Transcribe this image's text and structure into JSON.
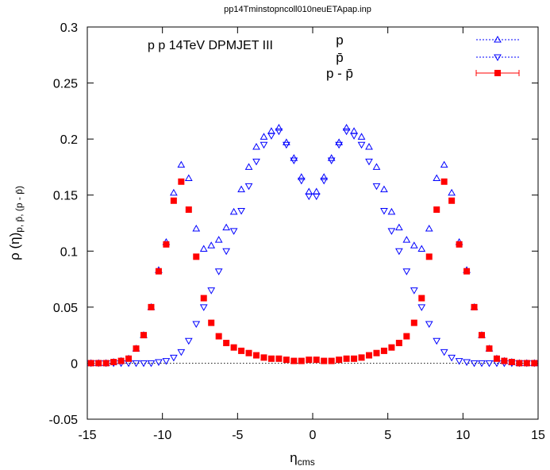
{
  "chart_data": {
    "type": "scatter",
    "file_title": "pp14Tminstopncoll010neuETApap.inp",
    "annotation": "p p  14TeV DPMJET III",
    "xlabel": "η",
    "xlabel_sub": "cms",
    "ylabel": "ρ (η)",
    "ylabel_sub": "p, p̄, (p - p̄)",
    "xlim": [
      -15,
      15
    ],
    "ylim": [
      -0.05,
      0.3
    ],
    "xticks": [
      "-15",
      "-10",
      "-5",
      "0",
      "5",
      "10",
      "15"
    ],
    "yticks": [
      "-0.05",
      "0",
      "0.05",
      "0.1",
      "0.15",
      "0.2",
      "0.25",
      "0.3"
    ],
    "grid": false,
    "legend_position": "top-right",
    "series": [
      {
        "name": "p",
        "marker": "triangle-up",
        "color": "#0000ff",
        "x": [
          -14.75,
          -14.25,
          -13.75,
          -13.25,
          -12.75,
          -12.25,
          -11.75,
          -11.25,
          -10.75,
          -10.25,
          -9.75,
          -9.25,
          -8.75,
          -8.25,
          -7.75,
          -7.25,
          -6.75,
          -6.25,
          -5.75,
          -5.25,
          -4.75,
          -4.25,
          -3.75,
          -3.25,
          -2.75,
          -2.25,
          -1.75,
          -1.25,
          -0.75,
          -0.25,
          0.25,
          0.75,
          1.25,
          1.75,
          2.25,
          2.75,
          3.25,
          3.75,
          4.25,
          4.75,
          5.25,
          5.75,
          6.25,
          6.75,
          7.25,
          7.75,
          8.25,
          8.75,
          9.25,
          9.75,
          10.25,
          10.75,
          11.25,
          11.75,
          12.25,
          12.75,
          13.25,
          13.75,
          14.25,
          14.75
        ],
        "y": [
          0,
          0,
          0,
          0.001,
          0.002,
          0.004,
          0.013,
          0.025,
          0.05,
          0.083,
          0.108,
          0.152,
          0.177,
          0.165,
          0.12,
          0.102,
          0.105,
          0.11,
          0.121,
          0.135,
          0.155,
          0.175,
          0.193,
          0.202,
          0.207,
          0.21,
          0.197,
          0.183,
          0.166,
          0.153,
          0.153,
          0.166,
          0.183,
          0.197,
          0.21,
          0.207,
          0.202,
          0.193,
          0.175,
          0.155,
          0.135,
          0.121,
          0.11,
          0.105,
          0.102,
          0.12,
          0.165,
          0.177,
          0.152,
          0.108,
          0.083,
          0.05,
          0.025,
          0.013,
          0.004,
          0.002,
          0.001,
          0,
          0,
          0
        ]
      },
      {
        "name": "p̄",
        "marker": "triangle-down",
        "color": "#0000ff",
        "x": [
          -14.75,
          -14.25,
          -13.75,
          -13.25,
          -12.75,
          -12.25,
          -11.75,
          -11.25,
          -10.75,
          -10.25,
          -9.75,
          -9.25,
          -8.75,
          -8.25,
          -7.75,
          -7.25,
          -6.75,
          -6.25,
          -5.75,
          -5.25,
          -4.75,
          -4.25,
          -3.75,
          -3.25,
          -2.75,
          -2.25,
          -1.75,
          -1.25,
          -0.75,
          -0.25,
          0.25,
          0.75,
          1.25,
          1.75,
          2.25,
          2.75,
          3.25,
          3.75,
          4.25,
          4.75,
          5.25,
          5.75,
          6.25,
          6.75,
          7.25,
          7.75,
          8.25,
          8.75,
          9.25,
          9.75,
          10.25,
          10.75,
          11.25,
          11.75,
          12.25,
          12.75,
          13.25,
          13.75,
          14.25,
          14.75
        ],
        "y": [
          0,
          0,
          0,
          0,
          0,
          0,
          0,
          0,
          0,
          0.001,
          0.002,
          0.005,
          0.01,
          0.02,
          0.035,
          0.05,
          0.065,
          0.082,
          0.1,
          0.118,
          0.136,
          0.158,
          0.18,
          0.195,
          0.203,
          0.207,
          0.195,
          0.181,
          0.163,
          0.149,
          0.149,
          0.163,
          0.181,
          0.195,
          0.207,
          0.203,
          0.195,
          0.18,
          0.158,
          0.136,
          0.118,
          0.1,
          0.082,
          0.065,
          0.05,
          0.035,
          0.02,
          0.01,
          0.005,
          0.002,
          0.001,
          0,
          0,
          0,
          0,
          0,
          0,
          0,
          0,
          0
        ]
      },
      {
        "name": "p - p̄",
        "marker": "square-filled",
        "color": "#ff0000",
        "x": [
          -14.75,
          -14.25,
          -13.75,
          -13.25,
          -12.75,
          -12.25,
          -11.75,
          -11.25,
          -10.75,
          -10.25,
          -9.75,
          -9.25,
          -8.75,
          -8.25,
          -7.75,
          -7.25,
          -6.75,
          -6.25,
          -5.75,
          -5.25,
          -4.75,
          -4.25,
          -3.75,
          -3.25,
          -2.75,
          -2.25,
          -1.75,
          -1.25,
          -0.75,
          -0.25,
          0.25,
          0.75,
          1.25,
          1.75,
          2.25,
          2.75,
          3.25,
          3.75,
          4.25,
          4.75,
          5.25,
          5.75,
          6.25,
          6.75,
          7.25,
          7.75,
          8.25,
          8.75,
          9.25,
          9.75,
          10.25,
          10.75,
          11.25,
          11.75,
          12.25,
          12.75,
          13.25,
          13.75,
          14.25,
          14.75
        ],
        "y": [
          0,
          0,
          0,
          0.001,
          0.002,
          0.004,
          0.013,
          0.025,
          0.05,
          0.082,
          0.106,
          0.145,
          0.162,
          0.137,
          0.095,
          0.058,
          0.036,
          0.024,
          0.018,
          0.014,
          0.011,
          0.009,
          0.007,
          0.005,
          0.004,
          0.004,
          0.003,
          0.002,
          0.002,
          0.003,
          0.003,
          0.002,
          0.002,
          0.003,
          0.004,
          0.004,
          0.005,
          0.007,
          0.009,
          0.011,
          0.014,
          0.018,
          0.024,
          0.036,
          0.058,
          0.095,
          0.137,
          0.162,
          0.145,
          0.106,
          0.082,
          0.05,
          0.025,
          0.013,
          0.004,
          0.002,
          0.001,
          0,
          0,
          0
        ]
      }
    ]
  }
}
